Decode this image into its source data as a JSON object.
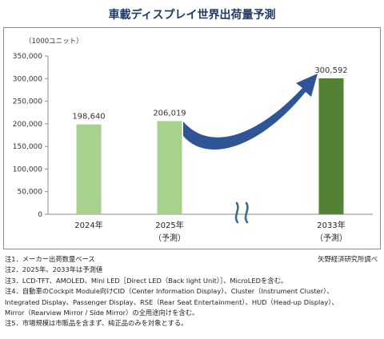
{
  "title": "車載ディスプレイ世界出荷量予測",
  "unit_label": "（1000ユニット）",
  "source": "矢野経済研究所調べ",
  "colors": {
    "title": "#1f3864",
    "bar_light": "#a9d18e",
    "bar_dark": "#548235",
    "arrow": "#2f5597",
    "break_mark": "#3f6c86"
  },
  "chart_data": {
    "type": "bar",
    "title": "車載ディスプレイ世界出荷量予測",
    "ylabel": "（1000ユニット）",
    "ylim": [
      0,
      350000
    ],
    "yticks": [
      "0",
      "50,000",
      "100,000",
      "150,000",
      "200,000",
      "250,000",
      "300,000",
      "350,000"
    ],
    "grid": false,
    "categories": [
      {
        "year": "2024年",
        "sub": ""
      },
      {
        "year": "2025年",
        "sub": "（予測）"
      },
      {
        "year": "2033年",
        "sub": "（予測）"
      }
    ],
    "values": [
      198640,
      206019,
      300592
    ],
    "value_labels": [
      "198,640",
      "206,019",
      "300,592"
    ],
    "axis_break": true
  },
  "notes": [
    "注1．メーカー出荷数量ベース",
    "注2．2025年、2033年は予測値",
    "注3．LCD-TFT、AMOLED、Mini LED［Direct LED（Back light Unit）］、MicroLEDを含む。",
    "注4．自動車のCockpit Module向けCID（Center Information Display）、Cluster（Instrument Cluster）、",
    "Integrated Display、Passenger Display、RSE（Rear Seat Entertainment）、HUD（Head-up Display）、",
    "Mirror（Rearview Mirror / Side Mirror）の全用途向けを含む。",
    "注5．市場規模は市販品を含まず、純正品のみを対象とする。"
  ]
}
